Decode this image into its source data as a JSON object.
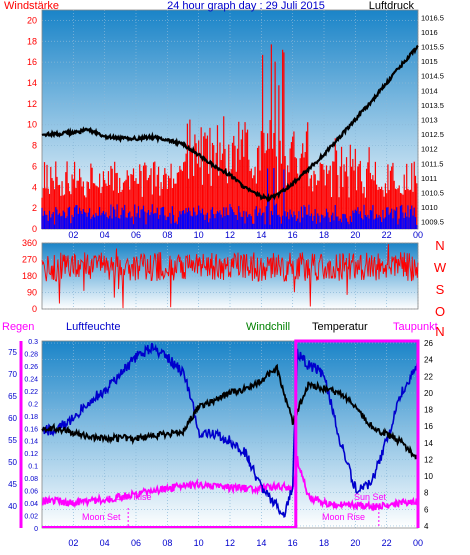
{
  "page": {
    "title": "24 hour graph day : 29 Juli 2015"
  },
  "panel_wind": {
    "left_label": "Windstärke",
    "right_label": "Luftdruck",
    "left_color": "#ff0000",
    "right_color": "#000000"
  },
  "panel_dir": {
    "compass": [
      "N",
      "W",
      "S",
      "O",
      "N"
    ],
    "color": "#ff0000"
  },
  "panel_climate": {
    "labels": {
      "regen": "Regen",
      "luftfeuchte": "Luftfeuchte",
      "windchill": "Windchill",
      "temperatur": "Temperatur",
      "taupunkt": "Taupunkt"
    },
    "label_colors": {
      "regen": "#ff00ff",
      "luftfeuchte": "#0000cc",
      "windchill": "#008000",
      "temperatur": "#000000",
      "taupunkt": "#ff00ff"
    },
    "annotations": {
      "sun_rise": "Sun Rise",
      "sun_set": "Sun Set",
      "moon_set": "Moon Set",
      "moon_rise": "Moon Rise",
      "sun_rise_time": "Sun Rise time marker",
      "sun_set_time": "Sun Set time marker"
    }
  },
  "chart_data": [
    {
      "type": "line",
      "title": "24 hour graph day : 29 Juli 2015",
      "x_ticks": [
        "02",
        "04",
        "06",
        "08",
        "10",
        "12",
        "14",
        "16",
        "18",
        "20",
        "22",
        "00"
      ],
      "xlim": [
        0,
        24
      ],
      "y_left": {
        "label": "Windstärke",
        "ticks": [
          0,
          2,
          4,
          6,
          8,
          10,
          12,
          14,
          16,
          18,
          20
        ],
        "ylim": [
          0,
          21
        ]
      },
      "y_right": {
        "label": "Luftdruck",
        "ticks": [
          1009.5,
          1010,
          1010.5,
          1011,
          1011.5,
          1012,
          1012.5,
          1013,
          1013.5,
          1014,
          1014.5,
          1015,
          1015.5,
          1016,
          1016.5
        ],
        "ylim": [
          1009.25,
          1016.75
        ]
      },
      "series": [
        {
          "name": "Luftdruck",
          "color": "#000000",
          "x": [
            0,
            1,
            2,
            3,
            4,
            5,
            6,
            7,
            8,
            9,
            10,
            11,
            12,
            13,
            14,
            14.5,
            15,
            16,
            17,
            18,
            19,
            20,
            21,
            22,
            23,
            24
          ],
          "y": [
            1012.5,
            1012.5,
            1012.55,
            1012.65,
            1012.4,
            1012.35,
            1012.35,
            1012.4,
            1012.3,
            1012.15,
            1011.8,
            1011.4,
            1011.1,
            1010.65,
            1010.35,
            1010.3,
            1010.4,
            1010.8,
            1011.3,
            1011.8,
            1012.4,
            1013.0,
            1013.6,
            1014.25,
            1014.9,
            1015.5
          ]
        }
      ]
    },
    {
      "type": "line",
      "x_ticks": [
        "02",
        "04",
        "06",
        "08",
        "10",
        "12",
        "14",
        "16",
        "18",
        "20",
        "22",
        "00"
      ],
      "xlim": [
        0,
        24
      ],
      "y_left": {
        "ticks": [
          0,
          90,
          180,
          270,
          360
        ],
        "ylim": [
          0,
          360
        ]
      },
      "y_right_labels": [
        "N",
        "W",
        "S",
        "O",
        "N"
      ],
      "series": [
        {
          "name": "Windrichtung",
          "color": "#ff0000",
          "mean_deg": 230
        }
      ]
    },
    {
      "type": "line",
      "x_ticks": [
        "02",
        "04",
        "06",
        "08",
        "10",
        "12",
        "14",
        "16",
        "18",
        "20",
        "22",
        "00"
      ],
      "xlim": [
        0,
        24
      ],
      "y_axes": {
        "luftfeuchte": {
          "ticks": [
            40,
            45,
            50,
            55,
            60,
            65,
            70,
            75
          ],
          "ylim": [
            35,
            77.5
          ]
        },
        "regen": {
          "ticks": [
            0,
            0.02,
            0.04,
            0.06,
            0.08,
            0.1,
            0.12,
            0.14,
            0.16,
            0.18,
            0.2,
            0.22,
            0.24,
            0.26,
            0.28,
            0.3
          ],
          "ylim": [
            0,
            0.3
          ]
        },
        "temperatur": {
          "ticks": [
            4,
            6,
            8,
            10,
            12,
            14,
            16,
            18,
            20,
            22,
            24,
            26
          ],
          "ylim": [
            3.75,
            26.25
          ]
        }
      },
      "series": [
        {
          "name": "Luftfeuchte",
          "color": "#0000cc",
          "x": [
            0,
            1,
            2,
            3,
            4,
            5,
            6,
            7,
            8,
            9,
            9.5,
            10,
            11,
            12,
            13,
            14,
            15,
            15.5,
            16,
            16.3,
            17,
            18,
            19,
            20,
            21,
            22,
            23,
            24
          ],
          "y": [
            57,
            57.5,
            60,
            64,
            66,
            70,
            74,
            76,
            74,
            70,
            65,
            57,
            56,
            55,
            52,
            44,
            40,
            38,
            45,
            75,
            72,
            70,
            55,
            44,
            45,
            55,
            66,
            72
          ]
        },
        {
          "name": "Temperatur",
          "color": "#000000",
          "x": [
            0,
            1,
            2,
            3,
            4,
            5,
            6,
            7,
            8,
            9,
            10,
            11,
            12,
            13,
            14,
            15,
            16,
            17,
            18,
            19,
            20,
            21,
            22,
            23,
            24
          ],
          "y": [
            15.8,
            15.7,
            15.2,
            14.8,
            14.5,
            14.6,
            14.5,
            14.8,
            15.0,
            15.3,
            18.5,
            19.0,
            20.0,
            20.5,
            21.5,
            23.0,
            16.5,
            21.0,
            20.5,
            20.0,
            18.5,
            16.0,
            15.0,
            14.0,
            12.0
          ]
        },
        {
          "name": "Taupunkt",
          "color": "#ff00ff",
          "x": [
            0,
            1,
            2,
            3,
            4,
            5,
            6,
            7,
            8,
            9,
            10,
            11,
            12,
            13,
            14,
            15,
            16,
            16.3,
            17,
            18,
            19,
            20,
            21,
            22,
            23,
            24
          ],
          "y": [
            7.0,
            7.0,
            6.8,
            7.0,
            7.2,
            7.5,
            7.8,
            8.2,
            8.5,
            8.8,
            9.0,
            8.8,
            8.5,
            8.5,
            8.5,
            8.8,
            8.5,
            12.0,
            7.5,
            6.8,
            6.5,
            6.5,
            6.3,
            6.5,
            6.8,
            7.0
          ]
        }
      ]
    }
  ]
}
